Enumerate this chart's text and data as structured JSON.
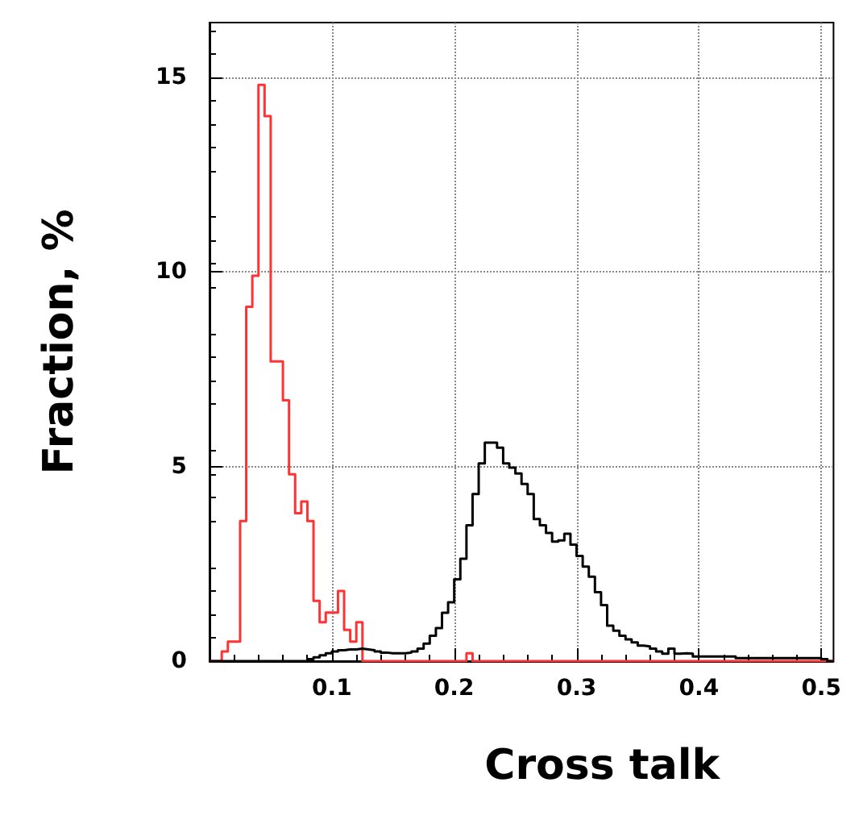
{
  "chart_data": {
    "type": "histogram",
    "xlabel": "Cross talk",
    "ylabel": "Fraction, %",
    "bins": [
      0,
      0.005,
      0.01,
      0.015,
      0.02,
      0.025,
      0.03,
      0.035,
      0.04,
      0.045,
      0.05,
      0.055,
      0.06,
      0.065,
      0.07,
      0.075,
      0.08,
      0.085,
      0.09,
      0.095,
      0.1,
      0.105,
      0.11,
      0.115,
      0.12,
      0.125,
      0.13,
      0.135,
      0.14,
      0.145,
      0.15,
      0.155,
      0.16,
      0.165,
      0.17,
      0.175,
      0.18,
      0.185,
      0.19,
      0.195,
      0.2,
      0.205,
      0.21,
      0.215,
      0.22,
      0.225,
      0.23,
      0.235,
      0.24,
      0.245,
      0.25,
      0.255,
      0.26,
      0.265,
      0.27,
      0.275,
      0.28,
      0.285,
      0.29,
      0.295,
      0.3,
      0.305,
      0.31,
      0.315,
      0.32,
      0.325,
      0.33,
      0.335,
      0.34,
      0.345,
      0.35,
      0.355,
      0.36,
      0.365,
      0.37,
      0.375,
      0.38,
      0.385,
      0.39,
      0.395,
      0.4,
      0.405,
      0.41,
      0.415,
      0.42,
      0.425,
      0.43,
      0.435,
      0.44,
      0.445,
      0.45,
      0.455,
      0.46,
      0.465,
      0.47,
      0.475,
      0.48,
      0.485,
      0.49,
      0.495,
      0.5,
      0.505,
      0.51
    ],
    "series": [
      {
        "color": "#ff3333",
        "values": [
          0,
          0,
          0.25,
          0.5,
          0.5,
          3.6,
          9.1,
          9.9,
          14.8,
          14.0,
          7.7,
          7.7,
          6.7,
          4.8,
          3.8,
          4.1,
          3.6,
          1.55,
          1.0,
          1.25,
          1.25,
          1.8,
          0.8,
          0.5,
          1.0,
          0,
          0,
          0,
          0,
          0,
          0,
          0,
          0,
          0,
          0,
          0,
          0,
          0,
          0,
          0,
          0,
          0,
          0.2,
          0,
          0,
          0,
          0,
          0,
          0,
          0,
          0,
          0,
          0,
          0,
          0,
          0,
          0,
          0,
          0,
          0,
          0,
          0,
          0,
          0,
          0,
          0,
          0,
          0,
          0,
          0,
          0,
          0,
          0,
          0,
          0,
          0,
          0,
          0,
          0,
          0,
          0,
          0,
          0,
          0,
          0,
          0,
          0,
          0,
          0,
          0,
          0,
          0,
          0,
          0,
          0,
          0,
          0,
          0,
          0,
          0,
          0,
          0
        ]
      },
      {
        "color": "#000000",
        "values": [
          0,
          0,
          0,
          0,
          0,
          0,
          0,
          0,
          0,
          0,
          0,
          0,
          0,
          0,
          0,
          0,
          0.05,
          0.1,
          0.15,
          0.2,
          0.25,
          0.28,
          0.3,
          0.3,
          0.32,
          0.3,
          0.28,
          0.25,
          0.22,
          0.2,
          0.2,
          0.2,
          0.22,
          0.25,
          0.32,
          0.45,
          0.65,
          0.85,
          1.24,
          1.51,
          2.1,
          2.63,
          3.49,
          4.29,
          5.08,
          5.61,
          5.61,
          5.48,
          5.08,
          4.97,
          4.82,
          4.55,
          4.29,
          3.65,
          3.49,
          3.29,
          3.07,
          3.1,
          3.27,
          2.99,
          2.7,
          2.43,
          2.17,
          1.77,
          1.44,
          0.91,
          0.78,
          0.65,
          0.56,
          0.48,
          0.4,
          0.38,
          0.32,
          0.25,
          0.19,
          0.32,
          0.19,
          0.2,
          0.19,
          0.12,
          0.12,
          0.12,
          0.12,
          0.12,
          0.12,
          0.12,
          0.08,
          0.08,
          0.08,
          0.08,
          0.08,
          0.08,
          0.08,
          0.08,
          0.08,
          0.08,
          0.08,
          0.08,
          0.08,
          0.08,
          0.05,
          0
        ]
      }
    ],
    "xlim": [
      0,
      0.51
    ],
    "xticks": [
      0.1,
      0.2,
      0.3,
      0.4,
      0.5
    ],
    "ylim": [
      0,
      16.4
    ],
    "yticks": [
      0,
      5,
      10,
      15
    ],
    "grid": true
  }
}
